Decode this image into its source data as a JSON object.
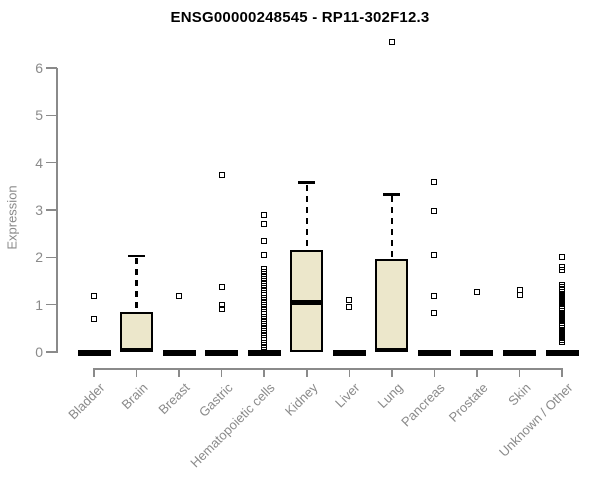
{
  "chart_data": {
    "type": "boxplot",
    "title": "ENSG00000248545 - RP11-302F12.3",
    "xlabel": "",
    "ylabel": "Expression",
    "ylim": [
      0,
      6.6
    ],
    "yticks": [
      0,
      1,
      2,
      3,
      4,
      5,
      6
    ],
    "grid": false,
    "legend": "none",
    "categories": [
      "Bladder",
      "Brain",
      "Breast",
      "Gastric",
      "Hematopoietic cells",
      "Kidney",
      "Liver",
      "Lung",
      "Pancreas",
      "Prostate",
      "Skin",
      "Unknown / Other"
    ],
    "series": [
      {
        "name": "Bladder",
        "q1": 0,
        "median": 0,
        "q3": 0,
        "whisker_low": 0,
        "whisker_high": 0,
        "outliers": [
          1.18,
          0.7
        ]
      },
      {
        "name": "Brain",
        "q1": 0,
        "median": 0,
        "q3": 0.85,
        "whisker_low": 0,
        "whisker_high": 2.03,
        "outliers": []
      },
      {
        "name": "Breast",
        "q1": 0,
        "median": 0,
        "q3": 0,
        "whisker_low": 0,
        "whisker_high": 0,
        "outliers": [
          1.18
        ]
      },
      {
        "name": "Gastric",
        "q1": 0,
        "median": 0,
        "q3": 0,
        "whisker_low": 0,
        "whisker_high": 0,
        "outliers": [
          3.75,
          1.37,
          1.0,
          0.9
        ]
      },
      {
        "name": "Hematopoietic cells",
        "q1": 0,
        "median": 0,
        "q3": 0,
        "whisker_low": 0,
        "whisker_high": 0,
        "outliers": [
          2.9,
          2.7,
          2.35,
          2.05,
          1.75,
          1.7,
          1.65,
          1.6,
          1.55,
          1.5,
          1.45,
          1.4,
          1.35,
          1.3,
          1.25,
          1.2,
          1.15,
          1.1,
          1.05,
          1.0,
          0.95,
          0.9,
          0.85,
          0.8,
          0.75,
          0.7,
          0.65,
          0.6,
          0.55,
          0.5,
          0.45,
          0.4,
          0.35,
          0.3,
          0.25,
          0.2,
          0.15,
          0.1
        ]
      },
      {
        "name": "Kidney",
        "q1": 0,
        "median": 1.05,
        "q3": 2.15,
        "whisker_low": 0,
        "whisker_high": 3.58,
        "outliers": []
      },
      {
        "name": "Liver",
        "q1": 0,
        "median": 0,
        "q3": 0,
        "whisker_low": 0,
        "whisker_high": 0,
        "outliers": [
          1.1,
          0.95
        ]
      },
      {
        "name": "Lung",
        "q1": 0,
        "median": 0,
        "q3": 1.97,
        "whisker_low": 0,
        "whisker_high": 3.33,
        "outliers": [
          6.55
        ]
      },
      {
        "name": "Pancreas",
        "q1": 0,
        "median": 0,
        "q3": 0,
        "whisker_low": 0,
        "whisker_high": 0,
        "outliers": [
          3.6,
          2.97,
          2.05,
          1.18,
          0.82
        ]
      },
      {
        "name": "Prostate",
        "q1": 0,
        "median": 0,
        "q3": 0,
        "whisker_low": 0,
        "whisker_high": 0,
        "outliers": [
          1.27
        ]
      },
      {
        "name": "Skin",
        "q1": 0,
        "median": 0,
        "q3": 0,
        "whisker_low": 0,
        "whisker_high": 0,
        "outliers": [
          1.3,
          1.2
        ]
      },
      {
        "name": "Unknown / Other",
        "q1": 0,
        "median": 0,
        "q3": 0,
        "whisker_low": 0,
        "whisker_high": 0,
        "outliers": [
          2.0,
          1.8,
          1.74,
          1.42,
          1.38,
          1.34,
          1.3,
          1.26,
          1.22,
          1.18,
          1.14,
          1.1,
          1.06,
          1.02,
          0.98,
          0.94,
          0.9,
          0.86,
          0.82,
          0.78,
          0.74,
          0.7,
          0.66,
          0.62,
          0.58,
          0.54,
          0.5,
          0.46,
          0.42,
          0.38,
          0.34,
          0.3,
          0.26,
          0.22
        ]
      }
    ],
    "colors": {
      "box_fill": "#ECE7CB",
      "box_border": "#000000",
      "median": "#000000",
      "outlier": "#000000",
      "axis": "#8A8A8A",
      "tick_text": "#8A8A8A",
      "title_text": "#000000",
      "background": "#FFFFFF"
    }
  }
}
